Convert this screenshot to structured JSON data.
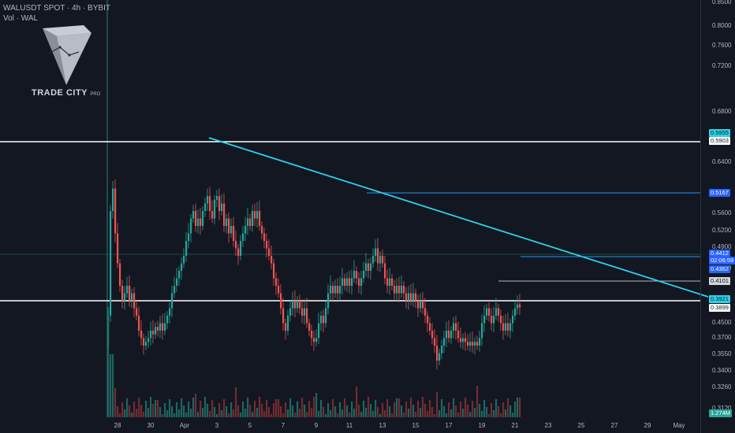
{
  "header": {
    "symbol_line": "WALUSDT SPOT · 4h · BYBIT",
    "volume_line": "Vol · WAL"
  },
  "logo": {
    "brand": "TRADE CITY",
    "suffix": "PRO",
    "icon": "cube-logo-icon"
  },
  "price_axis": {
    "ticks": [
      "0.8500",
      "0.8000",
      "0.7600",
      "0.7200",
      "0.6800",
      "0.6400",
      "0.5600",
      "0.5200",
      "0.4900",
      "0.4700",
      "0.4500",
      "0.3700",
      "0.3550",
      "0.3400",
      "0.3260",
      "0.3120",
      "0.2990"
    ]
  },
  "price_tags": [
    {
      "label": "0.5955",
      "kind": "cyan"
    },
    {
      "label": "0.5903",
      "kind": "white"
    },
    {
      "label": "0.5167",
      "kind": "blue"
    },
    {
      "label": "0.4412",
      "kind": "blue"
    },
    {
      "label": "02:06:59",
      "kind": "blue"
    },
    {
      "label": "0.4362",
      "kind": "blue"
    },
    {
      "label": "0.4101",
      "kind": "gray"
    },
    {
      "label": "0.3921",
      "kind": "cyan"
    },
    {
      "label": "0.3899",
      "kind": "white"
    },
    {
      "label": "1.274M",
      "kind": "teal"
    }
  ],
  "time_axis": {
    "ticks": [
      "28",
      "30",
      "Apr",
      "3",
      "5",
      "7",
      "9",
      "11",
      "13",
      "15",
      "17",
      "19",
      "21",
      "23",
      "25",
      "27",
      "29",
      "May"
    ]
  },
  "colors": {
    "background": "#131722",
    "up_candle": "#26a69a",
    "down_candle": "#ef5350",
    "trendline": "#2fd1e8",
    "level_line": "#ffffff",
    "resistance_line": "#2196f3"
  },
  "chart_data": {
    "type": "candlestick",
    "title": "WALUSDT SPOT · 4h · BYBIT",
    "interval": "4h",
    "levels": [
      0.5903,
      0.5167,
      0.3899
    ],
    "level_tags": [
      0.5955,
      0.5167,
      0.4412,
      0.4362,
      0.4101,
      0.3921,
      0.3899
    ],
    "trendline": {
      "from": {
        "date": "Apr 3",
        "price": 0.593
      },
      "to": {
        "date": "May 1",
        "price": 0.392
      }
    },
    "volume_label": "1.274M"
  }
}
